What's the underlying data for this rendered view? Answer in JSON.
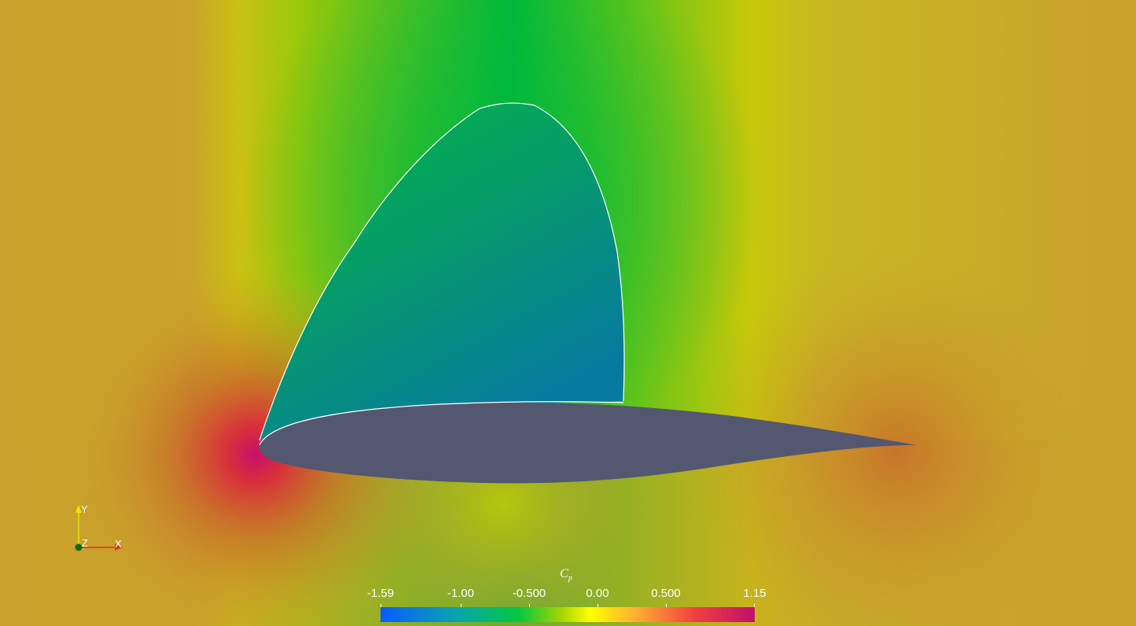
{
  "colorbar": {
    "title_main": "C",
    "title_sub": "p",
    "ticks": [
      "-1.59",
      "-1.00",
      "-0.500",
      "0.00",
      "0.500",
      "1.15"
    ],
    "tick_values": [
      -1.59,
      -1.0,
      -0.5,
      0.0,
      0.5,
      1.15
    ],
    "range": [
      -1.59,
      1.15
    ],
    "colormap": [
      "#0a5bff",
      "#0aa3b0",
      "#05c840",
      "#9fd400",
      "#ffff00",
      "#ffb030",
      "#f04040",
      "#c0106a"
    ]
  },
  "orientation_axes": {
    "x_label": "X",
    "y_label": "Y",
    "z_label": "Z",
    "x_color": "#e8281e",
    "y_color": "#e6e600",
    "z_color": "#0b6b0b"
  },
  "scene": {
    "airfoil_color": "#535770",
    "contour_color": "#ffffff",
    "freestream_color": "#c9a12c"
  }
}
